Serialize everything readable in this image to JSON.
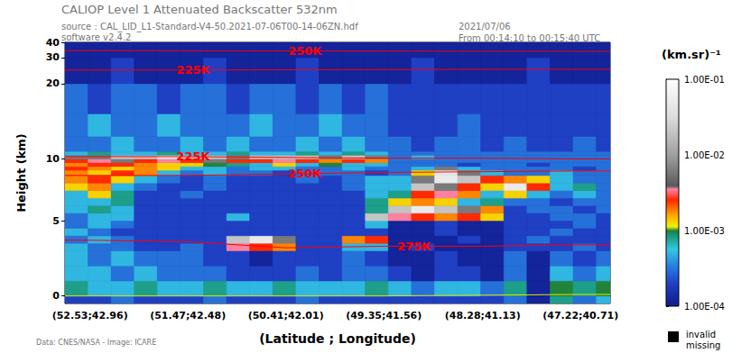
{
  "chart_data": {
    "type": "heatmap",
    "title": "CALIOP Level 1 Attenuated Backscatter 532nm",
    "subtitle": [
      "source : CAL_LID_L1-Standard-V4-50.2021-07-06T00-14-06ZN.hdf",
      "software v2.4.2"
    ],
    "annotations": [
      "2021/07/06",
      "From 00:14:10 to 00:15:40 UTC",
      "Data: CNES/NASA - Image: ICARE"
    ],
    "x_label": "(Latitude ; Longitude)",
    "y_label": "Height (km)",
    "xlim": [
      52.8,
      46.9
    ],
    "xticks": [
      {
        "value": 52.53,
        "label": "(52.53;42.96)"
      },
      {
        "value": 51.47,
        "label": "(51.47;42.48)"
      },
      {
        "value": 50.41,
        "label": "(50.41;42.01)"
      },
      {
        "value": 49.35,
        "label": "(49.35;41.56)"
      },
      {
        "value": 48.28,
        "label": "(48.28;41.13)"
      },
      {
        "value": 47.22,
        "label": "(47.22;40.71)"
      }
    ],
    "ylim": [
      -0.5,
      40
    ],
    "yticks": [
      0,
      5,
      10,
      20,
      30,
      40
    ],
    "x_edges": [
      52.8,
      52.55,
      52.3,
      52.05,
      51.8,
      51.55,
      51.3,
      51.05,
      50.8,
      50.55,
      50.3,
      50.05,
      49.8,
      49.55,
      49.3,
      49.05,
      48.8,
      48.55,
      48.3,
      48.05,
      47.8,
      47.55,
      47.3,
      47.05,
      46.9
    ],
    "y_edges": [
      -0.5,
      0,
      1,
      2,
      3,
      3.5,
      4,
      4.5,
      5,
      5.5,
      6,
      6.5,
      7,
      7.5,
      8,
      8.5,
      9,
      9.5,
      10,
      10.5,
      11,
      13,
      16,
      20,
      30,
      40
    ],
    "values": [
      [
        0.0002,
        0.0002,
        0.0003,
        0.0002,
        0.0002,
        0.0002,
        0.0003,
        0.0002,
        0.0002,
        0.0002,
        0.0003,
        0.0002,
        0.0002,
        0.0002,
        0.0002,
        0.0002,
        0.0002,
        0.0002,
        0.0002,
        0.0003,
        0.00012,
        0.0008,
        0.0003,
        0.0005
      ],
      [
        0.0008,
        0.0005,
        0.0005,
        0.0008,
        0.0005,
        0.0005,
        0.0008,
        0.0005,
        0.0005,
        0.0008,
        0.0005,
        0.0005,
        0.0005,
        0.0008,
        0.0005,
        0.0003,
        0.0005,
        0.0005,
        0.0003,
        0.0008,
        0.00012,
        0.001,
        0.0008,
        0.001
      ],
      [
        0.0005,
        0.0005,
        0.0003,
        0.0005,
        0.0003,
        0.0003,
        0.0003,
        0.0002,
        0.0002,
        0.0002,
        0.0003,
        0.0002,
        0.0003,
        0.0003,
        0.0002,
        0.00012,
        0.0002,
        0.0002,
        0.00012,
        0.0003,
        0.00012,
        0.0005,
        0.0003,
        0.0005
      ],
      [
        0.0005,
        0.0003,
        0.0005,
        0.0003,
        0.0003,
        0.0003,
        0.0002,
        0.0002,
        0.00012,
        0.0002,
        0.0002,
        0.0002,
        0.0003,
        0.0002,
        0.00012,
        0.00012,
        0.0002,
        0.00012,
        0.00012,
        0.0003,
        0.00012,
        0.0003,
        0.0002,
        0.0003
      ],
      [
        0.0005,
        0.0003,
        0.0003,
        0.0002,
        0.0002,
        0.0003,
        0.0002,
        0.0035,
        0.0025,
        0.0018,
        0.0002,
        0.0002,
        0.0005,
        0.0005,
        0.00012,
        0.0002,
        0.00012,
        0.00012,
        0.00012,
        0.0002,
        0.0002,
        0.0002,
        0.0003,
        0.0002
      ],
      [
        0.0003,
        0.0005,
        0.0003,
        0.0002,
        0.0002,
        0.0002,
        0.0002,
        0.02,
        0.05,
        0.006,
        0.0002,
        0.0002,
        0.0018,
        0.0025,
        0.00012,
        0.00012,
        0.00012,
        0.0002,
        0.00012,
        0.0002,
        0.0003,
        0.0002,
        0.0002,
        0.0002
      ],
      [
        0.0005,
        0.0003,
        0.0002,
        0.0002,
        0.0002,
        0.0002,
        0.0002,
        0.0002,
        0.0002,
        0.0002,
        0.0002,
        0.0002,
        0.0002,
        0.0002,
        0.00012,
        0.00012,
        0.0002,
        0.00012,
        0.00012,
        0.0002,
        0.0002,
        0.0003,
        0.0002,
        0.0002
      ],
      [
        0.0003,
        0.0005,
        0.0003,
        0.0002,
        0.0002,
        0.0002,
        0.0002,
        0.0002,
        0.0002,
        0.0002,
        0.0002,
        0.0002,
        0.0002,
        0.0005,
        0.00012,
        0.00012,
        0.0002,
        0.00012,
        0.00012,
        0.0002,
        0.0002,
        0.0002,
        0.0003,
        0.0002
      ],
      [
        0.0003,
        0.0005,
        0.0005,
        0.0002,
        0.0002,
        0.0002,
        0.0002,
        0.0005,
        0.0002,
        0.0002,
        0.0002,
        0.0002,
        0.0002,
        0.02,
        0.0035,
        0.0025,
        0.0018,
        0.0025,
        0.0013,
        0.0002,
        0.0002,
        0.0003,
        0.0003,
        0.0002
      ],
      [
        0.0005,
        0.0008,
        0.0005,
        0.0002,
        0.0002,
        0.0002,
        0.0002,
        0.0002,
        0.0002,
        0.0002,
        0.0002,
        0.0002,
        0.0002,
        0.0008,
        0.02,
        0.05,
        0.02,
        0.006,
        0.0018,
        0.0002,
        0.0003,
        0.0003,
        0.0002,
        0.0003
      ],
      [
        0.0005,
        0.0005,
        0.0008,
        0.0002,
        0.0002,
        0.0002,
        0.0002,
        0.0002,
        0.0002,
        0.0002,
        0.0002,
        0.0002,
        0.0002,
        0.0008,
        0.0013,
        0.0018,
        0.0013,
        0.0005,
        0.0008,
        0.0003,
        0.0003,
        0.0002,
        0.0003,
        0.0003
      ],
      [
        0.0005,
        0.0013,
        0.0008,
        0.0002,
        0.0002,
        0.0003,
        0.0002,
        0.0002,
        0.0002,
        0.0002,
        0.0002,
        0.0002,
        0.0002,
        0.0005,
        0.0008,
        0.0025,
        0.0035,
        0.0018,
        0.0005,
        0.0013,
        0.0005,
        0.0003,
        0.0005,
        0.0003
      ],
      [
        0.0013,
        0.0018,
        0.0005,
        0.0003,
        0.0002,
        0.0002,
        0.0003,
        0.0002,
        0.0002,
        0.0002,
        0.0002,
        0.0002,
        0.0003,
        0.0005,
        0.0005,
        0.02,
        0.006,
        0.0025,
        0.0013,
        0.05,
        0.0025,
        0.0005,
        0.0008,
        0.0003
      ],
      [
        0.0018,
        0.0025,
        0.0013,
        0.0005,
        0.0003,
        0.0002,
        0.0003,
        0.0002,
        0.0002,
        0.0002,
        0.0003,
        0.0002,
        0.0003,
        0.0005,
        0.0005,
        0.006,
        0.05,
        0.02,
        0.0025,
        0.0018,
        0.0013,
        0.0005,
        0.0003,
        0.0003
      ],
      [
        0.0018,
        0.0013,
        0.0025,
        0.0018,
        0.0005,
        0.0003,
        0.0005,
        0.0003,
        0.0003,
        0.0002,
        0.0003,
        0.0003,
        0.0003,
        0.0002,
        0.0003,
        0.0013,
        0.05,
        0.006,
        0.0005,
        0.0003,
        0.0003,
        0.0005,
        0.0003,
        0.0003
      ],
      [
        0.0025,
        0.0018,
        0.0013,
        0.0018,
        0.0013,
        0.0005,
        0.0005,
        0.0003,
        0.0005,
        0.0005,
        0.0003,
        0.0003,
        0.0005,
        0.0003,
        0.0003,
        0.0005,
        0.006,
        0.0005,
        0.0003,
        0.0003,
        0.0003,
        0.0003,
        0.0002,
        0.0003
      ],
      [
        0.0018,
        0.0025,
        0.0025,
        0.0018,
        0.0013,
        0.0013,
        0.001,
        0.0008,
        0.0005,
        0.0013,
        0.0005,
        0.001,
        0.0005,
        0.0005,
        0.0003,
        0.0003,
        0.0003,
        0.0002,
        0.0003,
        0.0003,
        0.0002,
        0.0003,
        0.0003,
        0.0003
      ],
      [
        0.0025,
        0.0035,
        0.006,
        0.0025,
        0.0035,
        0.0025,
        0.006,
        0.0025,
        0.0025,
        0.0035,
        0.0025,
        0.0018,
        0.0025,
        0.0018,
        0.0003,
        0.0003,
        0.0003,
        0.0003,
        0.0003,
        0.0003,
        0.0003,
        0.0003,
        0.0003,
        0.0003
      ],
      [
        0.006,
        0.006,
        0.02,
        0.02,
        0.05,
        0.02,
        0.02,
        0.006,
        0.02,
        0.02,
        0.02,
        0.006,
        0.02,
        0.006,
        0.0003,
        0.0005,
        0.0003,
        0.0003,
        0.0003,
        0.0003,
        0.0003,
        0.0003,
        0.0003,
        0.0003
      ],
      [
        0.0005,
        0.0008,
        0.0005,
        0.0005,
        0.0008,
        0.0005,
        0.0005,
        0.0008,
        0.0005,
        0.0005,
        0.0008,
        0.0005,
        0.0008,
        0.0005,
        0.0003,
        0.0003,
        0.0003,
        0.0003,
        0.0003,
        0.0003,
        0.0003,
        0.0003,
        0.0003,
        0.0003
      ],
      [
        0.0003,
        0.0003,
        0.0005,
        0.0003,
        0.0003,
        0.0005,
        0.0003,
        0.0005,
        0.0003,
        0.0003,
        0.0005,
        0.0003,
        0.0005,
        0.0003,
        0.0003,
        0.0002,
        0.0003,
        0.0003,
        0.0002,
        0.0003,
        0.0002,
        0.0002,
        0.0003,
        0.0002
      ],
      [
        0.0003,
        0.0005,
        0.0003,
        0.0003,
        0.0005,
        0.0003,
        0.0003,
        0.0003,
        0.0005,
        0.0003,
        0.0003,
        0.0005,
        0.0003,
        0.0003,
        0.0002,
        0.0002,
        0.0002,
        0.0003,
        0.0002,
        0.0002,
        0.0002,
        0.0002,
        0.0002,
        0.0002
      ],
      [
        0.0003,
        0.0002,
        0.0003,
        0.0003,
        0.0002,
        0.0003,
        0.0003,
        0.0002,
        0.0003,
        0.0003,
        0.0002,
        0.0003,
        0.0002,
        0.0003,
        0.0002,
        0.0002,
        0.0002,
        0.0002,
        0.0002,
        0.0002,
        0.0002,
        0.0002,
        0.0002,
        0.0002
      ],
      [
        0.00012,
        0.00012,
        0.0002,
        0.00012,
        0.00012,
        0.00012,
        0.0002,
        0.00012,
        0.00012,
        0.00012,
        0.0002,
        0.00012,
        0.00012,
        0.00012,
        0.00012,
        0.0002,
        0.00012,
        0.00012,
        0.00012,
        0.00012,
        0.0002,
        0.00012,
        0.00012,
        0.00012
      ],
      [
        0.00012,
        0.00012,
        0.00012,
        0.00012,
        0.00012,
        0.00012,
        0.00012,
        0.00012,
        0.00012,
        0.00012,
        0.00012,
        0.00012,
        0.00012,
        0.00012,
        0.00012,
        0.00012,
        0.00012,
        0.00012,
        0.00012,
        0.00012,
        0.00012,
        0.00012,
        0.00012,
        0.00012
      ]
    ],
    "colorbar": {
      "label": "(km.sr)⁻¹",
      "range": [
        0.0001,
        0.1
      ],
      "log": true,
      "ticks": [
        {
          "value": 0.0001,
          "label": "1.00E-04"
        },
        {
          "value": 0.001,
          "label": "1.00E-03"
        },
        {
          "value": 0.01,
          "label": "1.00E-02"
        },
        {
          "value": 0.1,
          "label": "1.00E-01"
        }
      ]
    },
    "missing_label": "invalid\nmissing",
    "contours": [
      {
        "label": "250K",
        "color": "#ff0000",
        "x": [
          52.8,
          52.53,
          51.47,
          50.41,
          49.35,
          48.28,
          47.22,
          46.9
        ],
        "values": [
          34.5,
          34.5,
          34.4,
          34.3,
          34.2,
          34.1,
          34.0,
          34.0
        ]
      },
      {
        "label": "225K",
        "color": "#ff0000",
        "x": [
          52.8,
          52.53,
          51.47,
          50.41,
          49.35,
          48.28,
          47.22,
          46.9
        ],
        "values": [
          25.0,
          25.0,
          25.0,
          25.1,
          25.2,
          25.3,
          25.3,
          25.3
        ]
      },
      {
        "label": "225K",
        "color": "#ff0000",
        "x": [
          52.8,
          52.53,
          51.47,
          50.41,
          49.35,
          48.28,
          47.22,
          46.9
        ],
        "values": [
          10.3,
          10.3,
          10.3,
          10.2,
          10.1,
          10.1,
          10.0,
          10.0
        ]
      },
      {
        "label": "250K",
        "color": "#ff0000",
        "x": [
          52.8,
          52.53,
          51.47,
          50.41,
          49.35,
          48.28,
          47.22,
          46.9
        ],
        "values": [
          8.0,
          8.0,
          8.0,
          8.1,
          8.2,
          8.3,
          8.4,
          8.4
        ]
      },
      {
        "label": "275K",
        "color": "#ff0000",
        "x": [
          52.8,
          52.53,
          51.47,
          50.41,
          49.35,
          48.28,
          47.22,
          46.9
        ],
        "values": [
          3.7,
          3.7,
          3.6,
          3.2,
          3.3,
          3.3,
          3.4,
          3.4
        ]
      }
    ],
    "surface": {
      "color": "#e6e600",
      "x": [
        52.8,
        52.53,
        51.47,
        50.41,
        49.35,
        48.28,
        47.22,
        46.9
      ],
      "values": [
        0,
        0,
        0,
        0,
        0,
        0.05,
        0.1,
        0.1
      ]
    }
  }
}
